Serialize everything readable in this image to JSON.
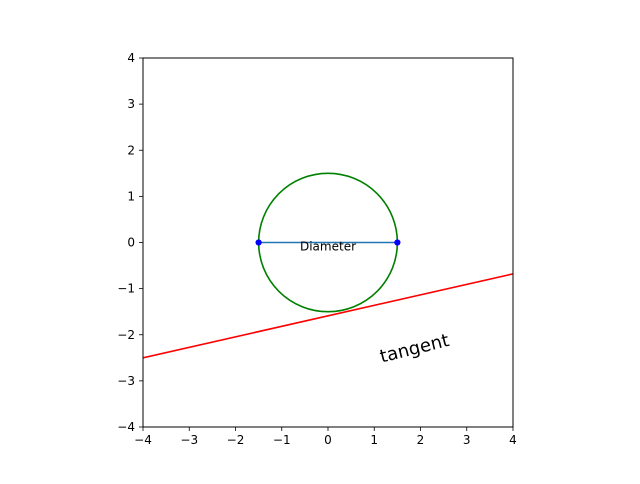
{
  "chart_data": {
    "type": "line",
    "title": "",
    "xlabel": "",
    "ylabel": "",
    "xlim": [
      -4,
      4
    ],
    "ylim": [
      -4,
      4
    ],
    "aspect": "equal",
    "grid": false,
    "xticks": [
      -4,
      -3,
      -2,
      -1,
      0,
      1,
      2,
      3,
      4
    ],
    "yticks": [
      -4,
      -3,
      -2,
      -1,
      0,
      1,
      2,
      3,
      4
    ],
    "xtick_labels": [
      "−4",
      "−3",
      "−2",
      "−1",
      "0",
      "1",
      "2",
      "3",
      "4"
    ],
    "ytick_labels": [
      "−4",
      "−3",
      "−2",
      "−1",
      "0",
      "1",
      "2",
      "3",
      "4"
    ],
    "series": [
      {
        "kind": "circle",
        "center": [
          0,
          0
        ],
        "radius": 1.5,
        "color": "#008000"
      },
      {
        "kind": "segment",
        "x": [
          -1.5,
          1.5
        ],
        "y": [
          0,
          0
        ],
        "color": "#1f77b4",
        "marker_color": "#0000ff"
      },
      {
        "kind": "line",
        "x": [
          -4,
          4
        ],
        "y": [
          -2.5,
          -0.68
        ],
        "color": "#ff0000"
      }
    ],
    "annotations": [
      {
        "text": "Diameter",
        "x": 0,
        "y": -0.17,
        "rotation": 0,
        "size": "small"
      },
      {
        "text": "tangent",
        "x": 1.9,
        "y": -2.42,
        "rotation": 14,
        "size": "large"
      }
    ]
  }
}
